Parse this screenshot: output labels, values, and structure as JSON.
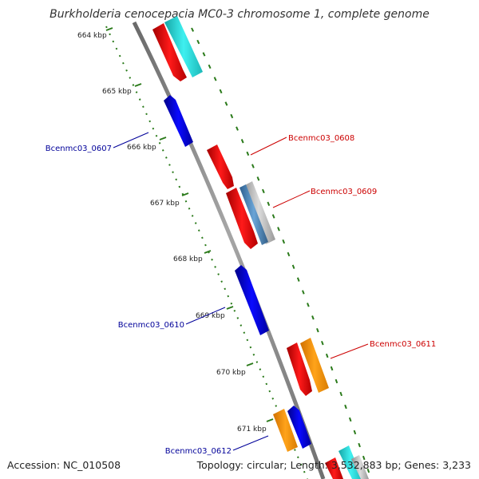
{
  "title": "Burkholderia cenocepacia MC0-3 chromosome 1, complete genome",
  "footer": {
    "accession": "Accession: NC_010508",
    "summary": "Topology: circular; Length: 3,532,883 bp; Genes: 3,233"
  },
  "scale_labels": [
    "664 kbp",
    "665 kbp",
    "666 kbp",
    "667 kbp",
    "668 kbp",
    "669 kbp",
    "670 kbp",
    "671 kbp"
  ],
  "gene_labels": [
    {
      "name": "Bcenmc03_0607",
      "strand": "minus"
    },
    {
      "name": "Bcenmc03_0608",
      "strand": "plus"
    },
    {
      "name": "Bcenmc03_0609",
      "strand": "plus"
    },
    {
      "name": "Bcenmc03_0610",
      "strand": "minus"
    },
    {
      "name": "Bcenmc03_0611",
      "strand": "plus"
    },
    {
      "name": "Bcenmc03_0612",
      "strand": "minus"
    }
  ],
  "colors": {
    "plus_label": "#cc0000",
    "minus_label": "#000099",
    "backbone": "#888888",
    "scale_ticks": "#2a7a1a",
    "red_feature": "#ee0000",
    "blue_feature": "#0000ee",
    "cyan_feature": "#22d8d8",
    "orange_feature": "#ff9900",
    "grey_feature": "#bbbbbb",
    "steel_feature": "#4a82b8"
  }
}
